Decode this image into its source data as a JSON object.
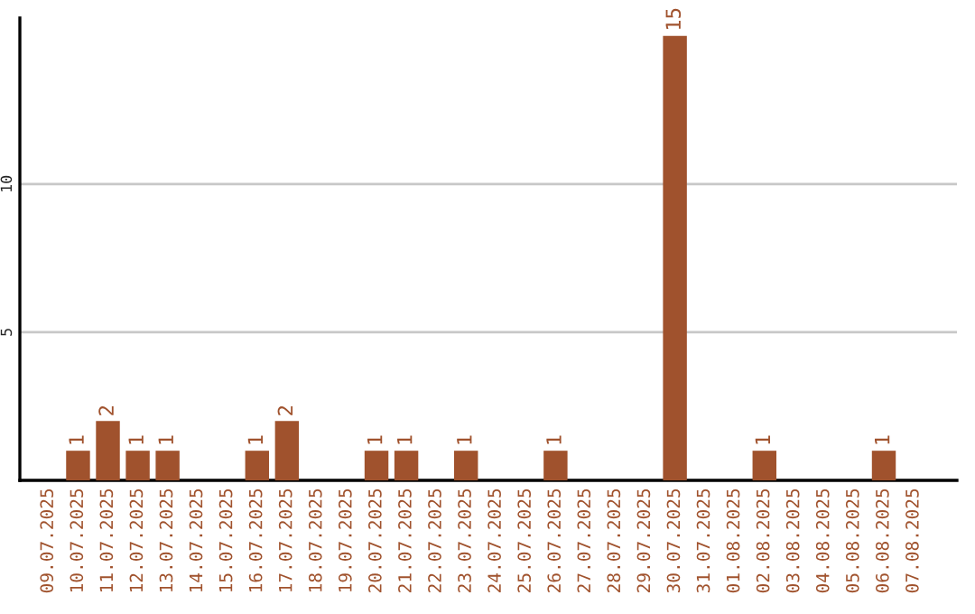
{
  "chart_data": {
    "type": "bar",
    "categories": [
      "09.07.2025",
      "10.07.2025",
      "11.07.2025",
      "12.07.2025",
      "13.07.2025",
      "14.07.2025",
      "15.07.2025",
      "16.07.2025",
      "17.07.2025",
      "18.07.2025",
      "19.07.2025",
      "20.07.2025",
      "21.07.2025",
      "22.07.2025",
      "23.07.2025",
      "24.07.2025",
      "25.07.2025",
      "26.07.2025",
      "27.07.2025",
      "28.07.2025",
      "29.07.2025",
      "30.07.2025",
      "31.07.2025",
      "01.08.2025",
      "02.08.2025",
      "03.08.2025",
      "04.08.2025",
      "05.08.2025",
      "06.08.2025",
      "07.08.2025"
    ],
    "values": [
      0,
      1,
      2,
      1,
      1,
      0,
      0,
      1,
      2,
      0,
      0,
      1,
      1,
      0,
      1,
      0,
      0,
      1,
      0,
      0,
      0,
      15,
      0,
      0,
      1,
      0,
      0,
      0,
      1,
      0
    ],
    "value_labels": [
      null,
      "1",
      "2",
      "1",
      "1",
      null,
      null,
      "1",
      "2",
      null,
      null,
      "1",
      "1",
      null,
      "1",
      null,
      null,
      "1",
      null,
      null,
      null,
      "15",
      null,
      null,
      "1",
      null,
      null,
      null,
      "1",
      null
    ],
    "color": "#a0522d",
    "ylim": [
      0,
      15.6
    ],
    "yticks": [
      5,
      10
    ],
    "grid": "y",
    "legend": false
  }
}
